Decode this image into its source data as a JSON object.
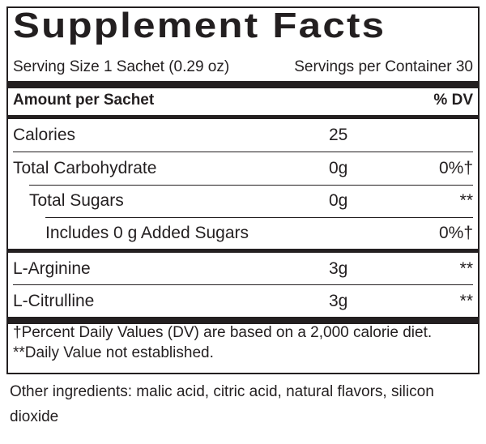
{
  "label": {
    "title": "Supplement Facts",
    "serving_size": "Serving Size 1 Sachet (0.29 oz)",
    "servings_per_container": "Servings per Container 30",
    "amount_header": "Amount per Sachet",
    "dv_header": "% DV",
    "rows": [
      {
        "name": "Calories",
        "amount": "25",
        "dv": ""
      },
      {
        "name": "Total Carbohydrate",
        "amount": "0g",
        "dv": "0%†"
      },
      {
        "name": "Total Sugars",
        "amount": "0g",
        "dv": "**"
      },
      {
        "name": "Includes 0 g Added Sugars",
        "amount": "",
        "dv": "0%†"
      },
      {
        "name": "L-Arginine",
        "amount": "3g",
        "dv": "**"
      },
      {
        "name": "L-Citrulline",
        "amount": "3g",
        "dv": "**"
      }
    ],
    "footnote": "†Percent Daily Values (DV) are based on a 2,000 calorie diet. **Daily Value not established.",
    "other_ingredients": "Other ingredients: malic acid, citric acid, natural flavors, silicon dioxide"
  }
}
